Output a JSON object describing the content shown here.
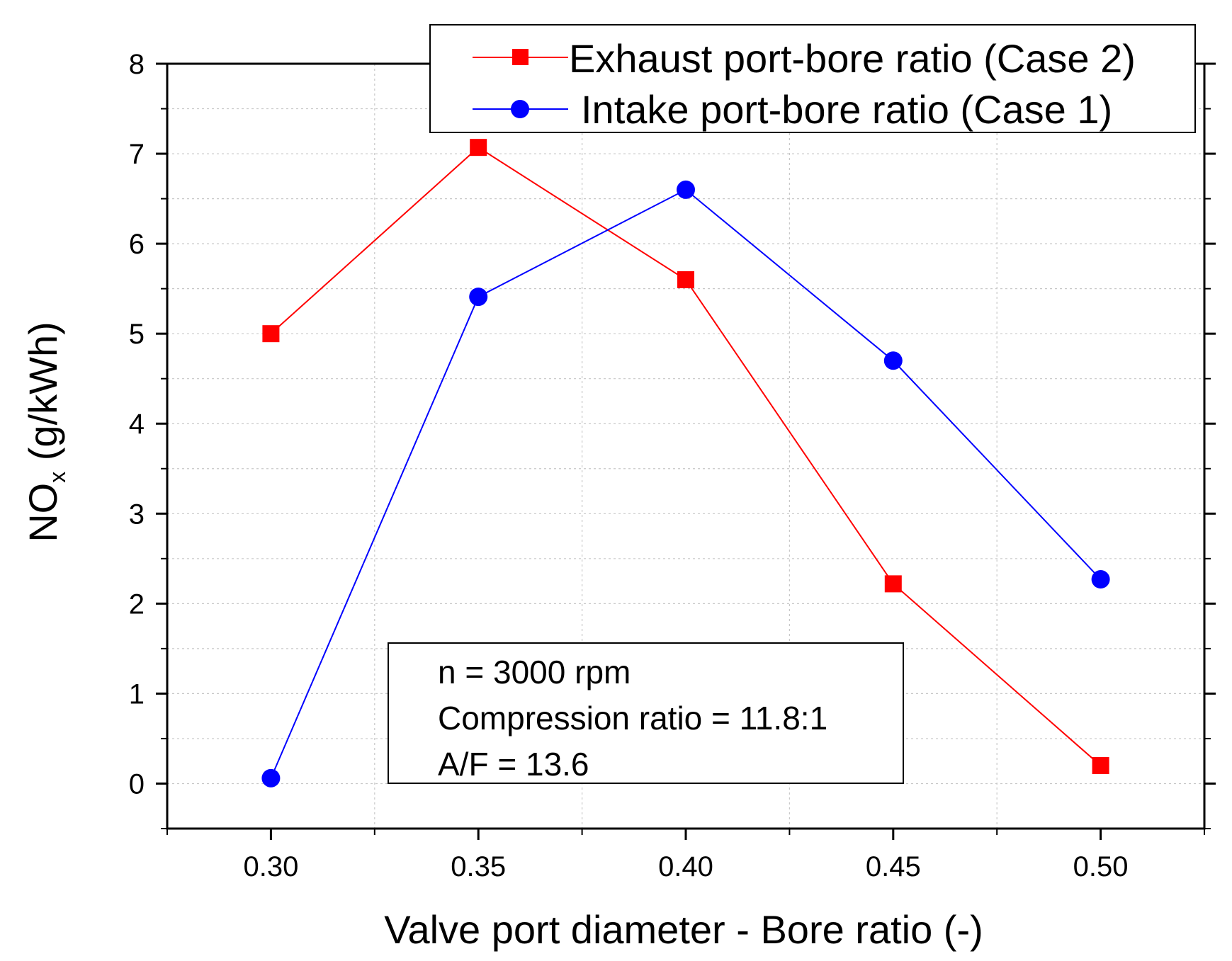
{
  "chart_data": {
    "type": "line",
    "title": "",
    "xlabel": "Valve port diameter - Bore ratio (-)",
    "ylabel_main": "NO",
    "ylabel_sub": "x",
    "ylabel_unit": " (g/kWh)",
    "xlim": [
      0.275,
      0.525
    ],
    "ylim": [
      -0.5,
      8
    ],
    "x_ticks": [
      "0.30",
      "0.35",
      "0.40",
      "0.45",
      "0.50"
    ],
    "y_ticks": [
      "0",
      "1",
      "2",
      "3",
      "4",
      "5",
      "6",
      "7",
      "8"
    ],
    "grid": true,
    "legend_position": "top-right",
    "series": [
      {
        "name": "Exhaust port-bore ratio (Case 2)",
        "color": "#ff0000",
        "marker": "square",
        "x": [
          0.3,
          0.35,
          0.4,
          0.45,
          0.5
        ],
        "values": [
          5.0,
          7.07,
          5.6,
          2.22,
          0.2
        ]
      },
      {
        "name": "Intake port-bore ratio (Case 1)",
        "color": "#0000ff",
        "marker": "circle",
        "x": [
          0.3,
          0.35,
          0.4,
          0.45,
          0.5
        ],
        "values": [
          0.06,
          5.41,
          6.6,
          4.7,
          2.27
        ]
      }
    ],
    "annotations": [
      "n = 3000 rpm",
      "Compression ratio = 11.8:1",
      "A/F = 13.6"
    ]
  }
}
